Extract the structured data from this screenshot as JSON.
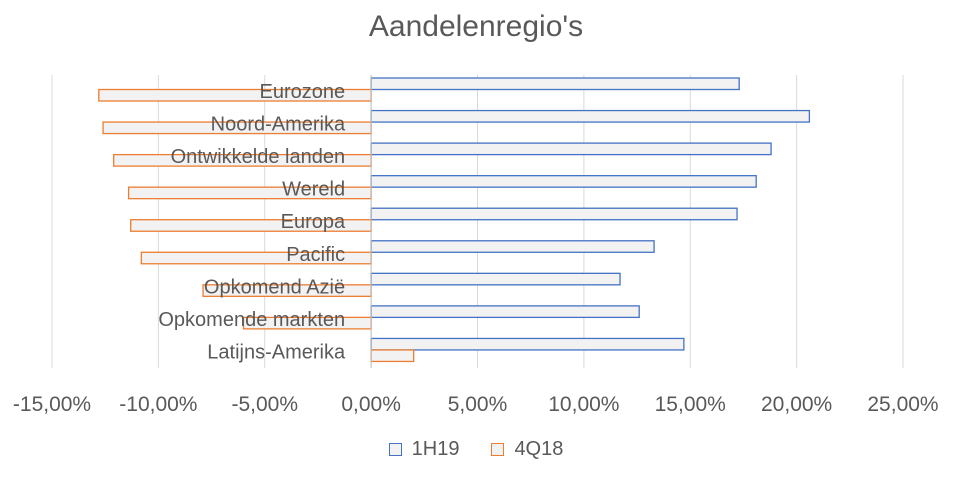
{
  "chart_data": {
    "type": "bar",
    "orientation": "horizontal",
    "title": "Aandelenregio's",
    "categories": [
      "Eurozone",
      "Noord-Amerika",
      "Ontwikkelde landen",
      "Wereld",
      "Europa",
      "Pacific",
      "Opkomend Azië",
      "Opkomende markten",
      "Latijns-Amerika"
    ],
    "series": [
      {
        "name": "1H19",
        "color": "#4472C4",
        "values": [
          17.3,
          20.6,
          18.8,
          18.1,
          17.2,
          13.3,
          11.7,
          12.6,
          14.7
        ]
      },
      {
        "name": "4Q18",
        "color": "#ED7D31",
        "values": [
          -12.8,
          -12.6,
          -12.1,
          -11.4,
          -11.3,
          -10.8,
          -7.9,
          -6.0,
          2.0
        ]
      }
    ],
    "xlim": [
      -15,
      25
    ],
    "xticks": [
      "-15,00%",
      "-10,00%",
      "-5,00%",
      "0,00%",
      "5,00%",
      "10,00%",
      "15,00%",
      "20,00%",
      "25,00%"
    ],
    "grid": true,
    "legend_position": "bottom",
    "bar_fill": "#F2F2F2"
  }
}
